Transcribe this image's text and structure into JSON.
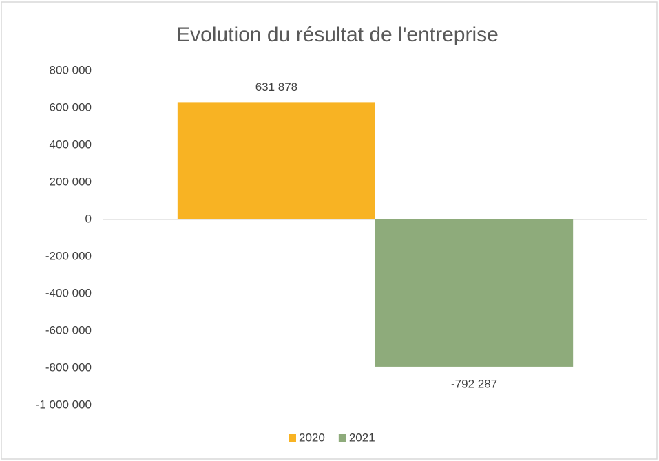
{
  "chart_data": {
    "type": "bar",
    "title": "Evolution du résultat de l'entreprise",
    "categories": [
      null
    ],
    "series": [
      {
        "name": "2020",
        "color": "#f8b323",
        "values": [
          631878
        ],
        "value_labels": [
          "631 878"
        ]
      },
      {
        "name": "2021",
        "color": "#8eab7b",
        "values": [
          -792287
        ],
        "value_labels": [
          "-792 287"
        ]
      }
    ],
    "ylim": [
      -1000000,
      800000
    ],
    "yticks": [
      {
        "value": -1000000,
        "label": "-1 000 000"
      },
      {
        "value": -800000,
        "label": "-800 000"
      },
      {
        "value": -600000,
        "label": "-600 000"
      },
      {
        "value": -400000,
        "label": "-400 000"
      },
      {
        "value": -200000,
        "label": "-200 000"
      },
      0,
      {
        "value": 200000,
        "label": "200 000"
      },
      {
        "value": 400000,
        "label": "400 000"
      },
      {
        "value": 600000,
        "label": "600 000"
      },
      {
        "value": 800000,
        "label": "800 000"
      }
    ],
    "grid": false,
    "legend": "bottom"
  }
}
